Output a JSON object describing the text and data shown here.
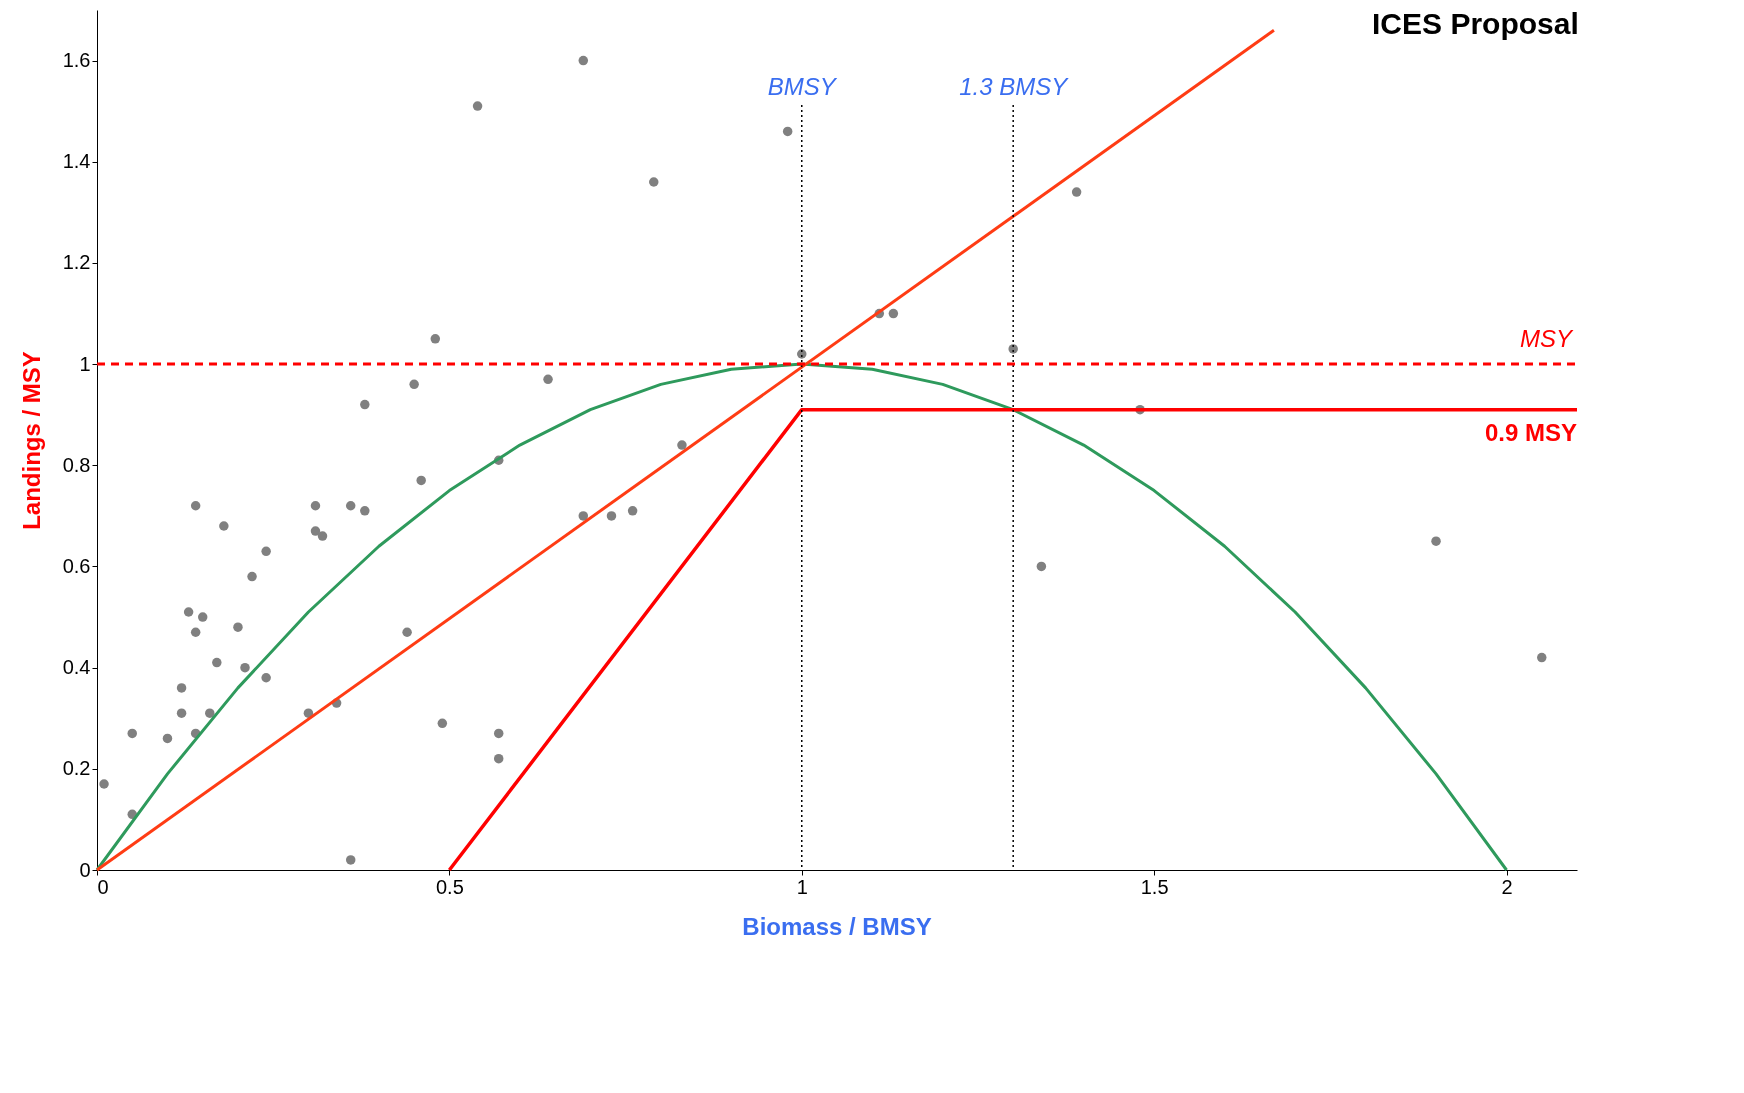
{
  "chart_data": {
    "type": "scatter",
    "title": "ICES Proposal",
    "xlabel": "Biomass / BMSY",
    "ylabel": "Landings / MSY",
    "xlim": [
      0,
      2.1
    ],
    "ylim": [
      0,
      1.7
    ],
    "xticks": [
      0,
      0.5,
      1,
      1.5,
      2
    ],
    "yticks": [
      0,
      0.2,
      0.4,
      0.6,
      0.8,
      1,
      1.2,
      1.4,
      1.6
    ],
    "grid": false,
    "series": [
      {
        "marker": "circle",
        "color": "#808080",
        "x": [
          0.01,
          0.05,
          0.05,
          0.1,
          0.12,
          0.12,
          0.13,
          0.14,
          0.14,
          0.14,
          0.15,
          0.16,
          0.17,
          0.18,
          0.2,
          0.21,
          0.22,
          0.24,
          0.24,
          0.3,
          0.31,
          0.31,
          0.32,
          0.34,
          0.36,
          0.36,
          0.38,
          0.38,
          0.44,
          0.45,
          0.46,
          0.48,
          0.49,
          0.54,
          0.57,
          0.57,
          0.57,
          0.64,
          0.69,
          0.69,
          0.73,
          0.76,
          0.79,
          0.83,
          0.98,
          1.0,
          1.11,
          1.13,
          1.3,
          1.34,
          1.39,
          1.48,
          1.9,
          2.05
        ],
        "values": [
          0.17,
          0.11,
          0.27,
          0.26,
          0.36,
          0.31,
          0.51,
          0.47,
          0.27,
          0.72,
          0.5,
          0.31,
          0.41,
          0.68,
          0.48,
          0.4,
          0.58,
          0.38,
          0.63,
          0.31,
          0.72,
          0.67,
          0.66,
          0.33,
          0.02,
          0.72,
          0.71,
          0.92,
          0.47,
          0.96,
          0.77,
          1.05,
          0.29,
          1.51,
          0.27,
          0.22,
          0.81,
          0.97,
          1.6,
          0.7,
          0.7,
          0.71,
          1.36,
          0.84,
          1.46,
          1.02,
          1.1,
          1.1,
          1.03,
          0.6,
          1.34,
          0.91,
          0.65,
          0.42
        ]
      },
      {
        "type": "line",
        "color": "#2e9a5c",
        "x": [
          0,
          0.1,
          0.2,
          0.3,
          0.4,
          0.5,
          0.6,
          0.7,
          0.8,
          0.9,
          1.0,
          1.1,
          1.2,
          1.3,
          1.4,
          1.5,
          1.6,
          1.7,
          1.8,
          1.9,
          2.0
        ],
        "values": [
          0,
          0.19,
          0.36,
          0.51,
          0.64,
          0.75,
          0.84,
          0.91,
          0.96,
          0.99,
          1.0,
          0.99,
          0.96,
          0.91,
          0.84,
          0.75,
          0.64,
          0.51,
          0.36,
          0.19,
          0
        ]
      },
      {
        "type": "line",
        "color": "#ff3c14",
        "x": [
          0,
          1.67
        ],
        "values": [
          0,
          1.66
        ]
      },
      {
        "type": "line",
        "name": "0.9 MSY",
        "color": "#ff0000",
        "x": [
          0.5,
          1,
          2.1
        ],
        "values": [
          0,
          0.91,
          0.91
        ]
      }
    ],
    "ref_lines": [
      {
        "axis": "x",
        "value": 1,
        "label": "BMSY",
        "color": "#000000",
        "line_style": "dotted"
      },
      {
        "axis": "x",
        "value": 1.3,
        "label": "1.3 BMSY",
        "color": "#000000",
        "line_style": "dotted"
      },
      {
        "axis": "y",
        "value": 1,
        "label": "MSY",
        "color": "#ff0000",
        "line_style": "dashed"
      }
    ]
  }
}
